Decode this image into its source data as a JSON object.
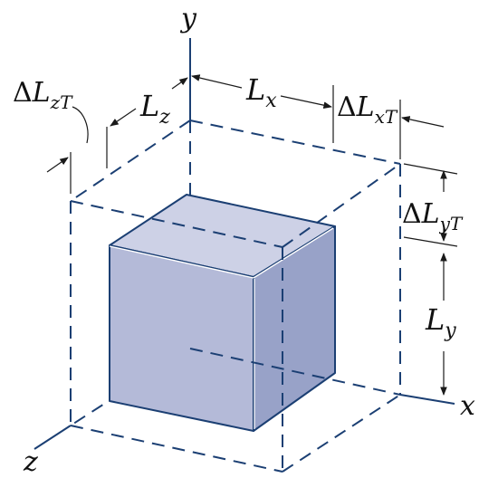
{
  "labels": {
    "y_axis": "y",
    "x_axis": "x",
    "z_axis": "z",
    "lx_main": "L",
    "lx_sub": "x",
    "lz_main": "L",
    "lz_sub": "z",
    "ly_main": "L",
    "ly_sub": "y",
    "dlx_delta": "Δ",
    "dlx_main": "L",
    "dlx_sub": "xT",
    "dly_delta": "Δ",
    "dly_main": "L",
    "dly_sub": "yT",
    "dlz_delta": "Δ",
    "dlz_main": "L",
    "dlz_sub": "zT"
  },
  "colors": {
    "cube_front": "#b4bad8",
    "cube_top": "#cdd1e6",
    "cube_right": "#98a2c8",
    "cube_edge": "#1b3f73",
    "dashed_box": "#1b3f73"
  }
}
